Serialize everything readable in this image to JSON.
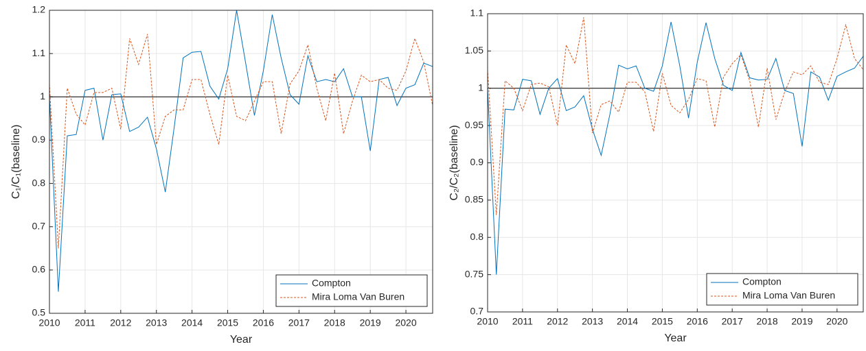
{
  "chart_data": [
    {
      "type": "line",
      "xlabel": "Year",
      "ylabel": "C₁/C₁(baseline)",
      "x": [
        2010,
        2010.25,
        2010.5,
        2010.75,
        2011,
        2011.25,
        2011.5,
        2011.75,
        2012,
        2012.25,
        2012.5,
        2012.75,
        2013,
        2013.25,
        2013.5,
        2013.75,
        2014,
        2014.25,
        2014.5,
        2014.75,
        2015,
        2015.25,
        2015.5,
        2015.75,
        2016,
        2016.25,
        2016.5,
        2016.75,
        2017,
        2017.25,
        2017.5,
        2017.75,
        2018,
        2018.25,
        2018.5,
        2018.75,
        2019,
        2019.25,
        2019.5,
        2019.75,
        2020,
        2020.25,
        2020.5,
        2020.75
      ],
      "series": [
        {
          "name": "Compton",
          "color": "#0072bd",
          "dash": false,
          "values": [
            1.0,
            0.55,
            0.91,
            0.913,
            1.015,
            1.02,
            0.9,
            1.005,
            1.007,
            0.92,
            0.93,
            0.953,
            0.88,
            0.78,
            0.93,
            1.09,
            1.103,
            1.105,
            1.025,
            0.995,
            1.065,
            1.2,
            1.08,
            0.957,
            1.06,
            1.19,
            1.09,
            1.005,
            0.983,
            1.095,
            1.035,
            1.04,
            1.035,
            1.065,
            1.0,
            1.0,
            0.875,
            1.04,
            1.045,
            0.98,
            1.02,
            1.028,
            1.078,
            1.07
          ]
        },
        {
          "name": "Mira Loma Van Buren",
          "color": "#d95319",
          "dash": true,
          "values": [
            1.03,
            0.65,
            1.02,
            0.96,
            0.935,
            1.01,
            1.01,
            1.02,
            0.925,
            1.135,
            1.075,
            1.145,
            0.89,
            0.955,
            0.97,
            0.97,
            1.04,
            1.04,
            0.96,
            0.89,
            1.05,
            0.955,
            0.945,
            0.99,
            1.035,
            1.035,
            0.915,
            1.03,
            1.06,
            1.12,
            1.02,
            0.945,
            1.055,
            0.915,
            0.99,
            1.05,
            1.035,
            1.04,
            1.02,
            1.015,
            1.06,
            1.135,
            1.08,
            0.98
          ]
        }
      ],
      "xlim": [
        2010,
        2020.75
      ],
      "xticks": [
        2010,
        2011,
        2012,
        2013,
        2014,
        2015,
        2016,
        2017,
        2018,
        2019,
        2020
      ],
      "ylim": [
        0.5,
        1.2
      ],
      "yticks": [
        0.5,
        0.6,
        0.7,
        0.8,
        0.9,
        1,
        1.1,
        1.2
      ],
      "hline": 1,
      "grid": true,
      "legend": "lower right"
    },
    {
      "type": "line",
      "xlabel": "Year",
      "ylabel": "C₂/C₂(baseline)",
      "x": [
        2010,
        2010.25,
        2010.5,
        2010.75,
        2011,
        2011.25,
        2011.5,
        2011.75,
        2012,
        2012.25,
        2012.5,
        2012.75,
        2013,
        2013.25,
        2013.5,
        2013.75,
        2014,
        2014.25,
        2014.5,
        2014.75,
        2015,
        2015.25,
        2015.5,
        2015.75,
        2016,
        2016.25,
        2016.5,
        2016.75,
        2017,
        2017.25,
        2017.5,
        2017.75,
        2018,
        2018.25,
        2018.5,
        2018.75,
        2019,
        2019.25,
        2019.5,
        2019.75,
        2020,
        2020.25,
        2020.5,
        2020.75
      ],
      "series": [
        {
          "name": "Compton",
          "color": "#0072bd",
          "dash": false,
          "values": [
            1.0,
            0.75,
            0.972,
            0.971,
            1.012,
            1.01,
            0.965,
            1.0,
            1.013,
            0.97,
            0.975,
            0.99,
            0.945,
            0.91,
            0.965,
            1.031,
            1.026,
            1.03,
            1.0,
            0.996,
            1.03,
            1.089,
            1.03,
            0.96,
            1.035,
            1.088,
            1.04,
            1.004,
            0.997,
            1.048,
            1.014,
            1.011,
            1.012,
            1.04,
            0.997,
            0.993,
            0.922,
            1.022,
            1.015,
            0.984,
            1.016,
            1.022,
            1.027,
            1.043
          ]
        },
        {
          "name": "Mira Loma Van Buren",
          "color": "#d95319",
          "dash": true,
          "values": [
            1.025,
            0.83,
            1.01,
            1.0,
            0.97,
            1.005,
            1.007,
            1.002,
            0.95,
            1.058,
            1.033,
            1.095,
            0.94,
            0.978,
            0.983,
            0.968,
            1.008,
            1.008,
            0.995,
            0.942,
            1.02,
            0.977,
            0.967,
            0.985,
            1.013,
            1.01,
            0.948,
            1.015,
            1.033,
            1.045,
            1.01,
            0.948,
            1.027,
            0.958,
            0.995,
            1.022,
            1.018,
            1.03,
            1.008,
            1.005,
            1.04,
            1.085,
            1.04,
            1.025
          ]
        }
      ],
      "xlim": [
        2010,
        2020.75
      ],
      "xticks": [
        2010,
        2011,
        2012,
        2013,
        2014,
        2015,
        2016,
        2017,
        2018,
        2019,
        2020
      ],
      "ylim": [
        0.7,
        1.1
      ],
      "yticks": [
        0.7,
        0.75,
        0.8,
        0.85,
        0.9,
        0.95,
        1,
        1.05,
        1.1
      ],
      "hline": 1,
      "grid": true,
      "legend": "lower right"
    }
  ]
}
